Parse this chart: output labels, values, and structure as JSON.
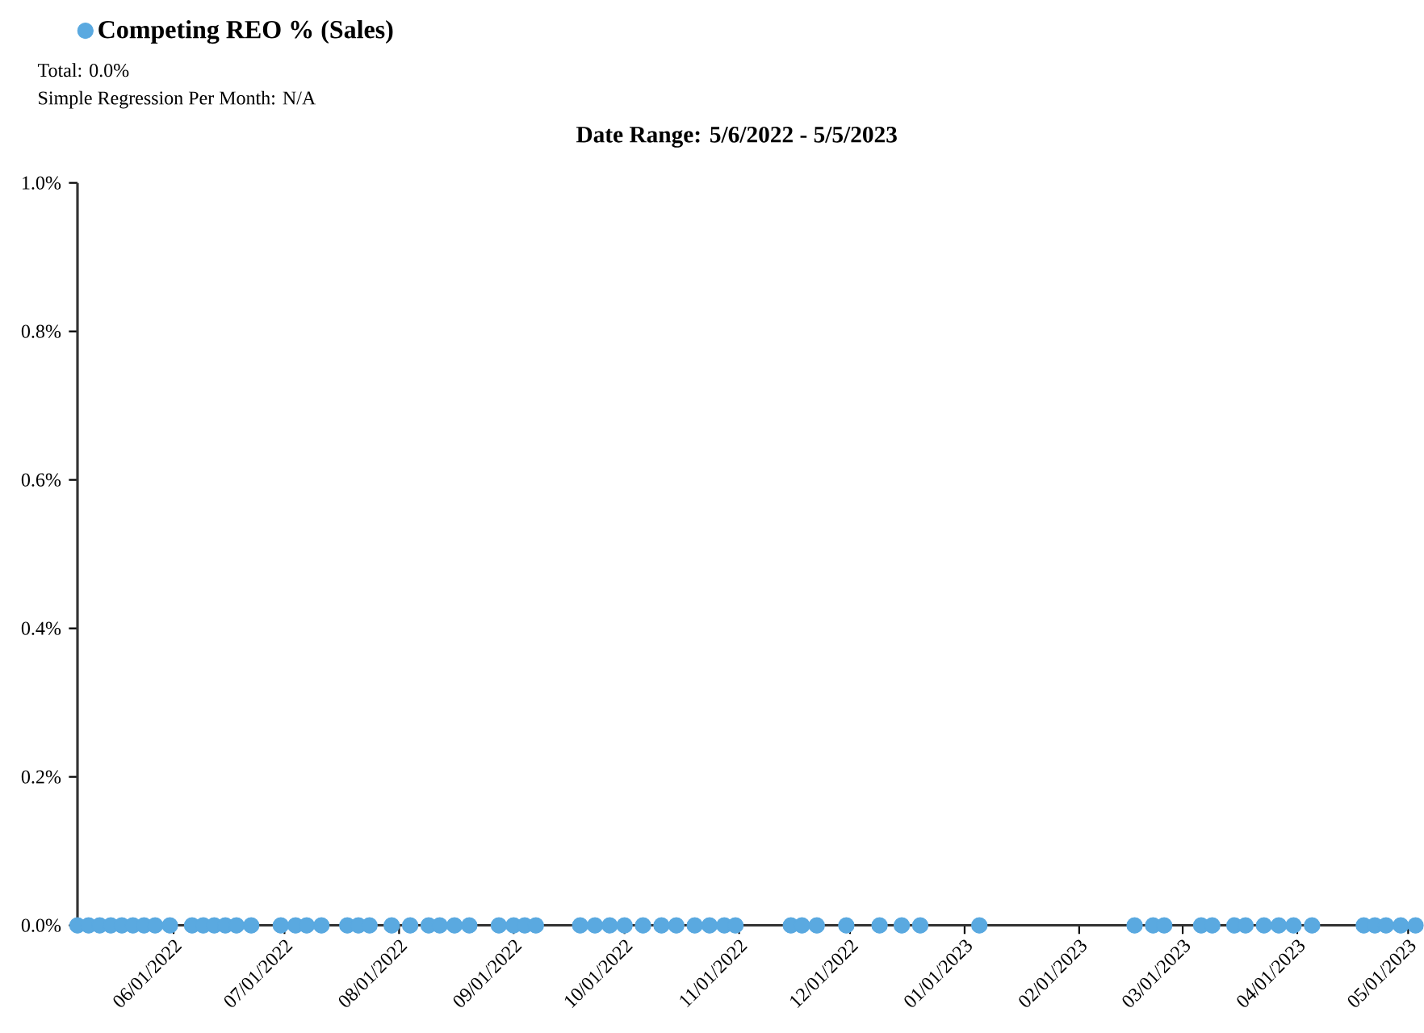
{
  "chart_data": {
    "type": "scatter",
    "title": "Date Range: 5/6/2022 - 5/5/2023",
    "annotations": [
      "Total: 0.0%",
      "Simple Regression Per Month: N/A"
    ],
    "series": [
      {
        "name": "Competing REO % (Sales)",
        "color": "#5aa9e0",
        "x": [
          "2022-05-06",
          "2022-05-09",
          "2022-05-12",
          "2022-05-15",
          "2022-05-18",
          "2022-05-21",
          "2022-05-24",
          "2022-05-27",
          "2022-05-31",
          "2022-06-06",
          "2022-06-09",
          "2022-06-12",
          "2022-06-15",
          "2022-06-18",
          "2022-06-22",
          "2022-06-30",
          "2022-07-04",
          "2022-07-07",
          "2022-07-11",
          "2022-07-18",
          "2022-07-21",
          "2022-07-24",
          "2022-07-30",
          "2022-08-04",
          "2022-08-09",
          "2022-08-12",
          "2022-08-16",
          "2022-08-20",
          "2022-08-28",
          "2022-09-01",
          "2022-09-04",
          "2022-09-07",
          "2022-09-19",
          "2022-09-23",
          "2022-09-27",
          "2022-10-01",
          "2022-10-06",
          "2022-10-11",
          "2022-10-15",
          "2022-10-20",
          "2022-10-24",
          "2022-10-28",
          "2022-10-31",
          "2022-11-15",
          "2022-11-18",
          "2022-11-22",
          "2022-11-30",
          "2022-12-09",
          "2022-12-15",
          "2022-12-20",
          "2023-01-05",
          "2023-02-16",
          "2023-02-21",
          "2023-02-24",
          "2023-03-06",
          "2023-03-09",
          "2023-03-15",
          "2023-03-18",
          "2023-03-23",
          "2023-03-27",
          "2023-03-31",
          "2023-04-05",
          "2023-04-19",
          "2023-04-22",
          "2023-04-25",
          "2023-04-29",
          "2023-05-03"
        ],
        "values": [
          0,
          0,
          0,
          0,
          0,
          0,
          0,
          0,
          0,
          0,
          0,
          0,
          0,
          0,
          0,
          0,
          0,
          0,
          0,
          0,
          0,
          0,
          0,
          0,
          0,
          0,
          0,
          0,
          0,
          0,
          0,
          0,
          0,
          0,
          0,
          0,
          0,
          0,
          0,
          0,
          0,
          0,
          0,
          0,
          0,
          0,
          0,
          0,
          0,
          0,
          0,
          0,
          0,
          0,
          0,
          0,
          0,
          0,
          0,
          0,
          0,
          0,
          0,
          0,
          0,
          0,
          0
        ]
      }
    ],
    "xlim": [
      "2022-05-06",
      "2023-05-05"
    ],
    "xticks": [
      {
        "value": "2022-06-01",
        "label": "06/01/2022"
      },
      {
        "value": "2022-07-01",
        "label": "07/01/2022"
      },
      {
        "value": "2022-08-01",
        "label": "08/01/2022"
      },
      {
        "value": "2022-09-01",
        "label": "09/01/2022"
      },
      {
        "value": "2022-10-01",
        "label": "10/01/2022"
      },
      {
        "value": "2022-11-01",
        "label": "11/01/2022"
      },
      {
        "value": "2022-12-01",
        "label": "12/01/2022"
      },
      {
        "value": "2023-01-01",
        "label": "01/01/2023"
      },
      {
        "value": "2023-02-01",
        "label": "02/01/2023"
      },
      {
        "value": "2023-03-01",
        "label": "03/01/2023"
      },
      {
        "value": "2023-04-01",
        "label": "04/01/2023"
      },
      {
        "value": "2023-05-01",
        "label": "05/01/2023"
      }
    ],
    "ylim": [
      0,
      1
    ],
    "yticks": [
      {
        "value": 0,
        "label": "0.0%"
      },
      {
        "value": 0.2,
        "label": "0.2%"
      },
      {
        "value": 0.4,
        "label": "0.4%"
      },
      {
        "value": 0.6,
        "label": "0.6%"
      },
      {
        "value": 0.8,
        "label": "0.8%"
      },
      {
        "value": 1,
        "label": "1.0%"
      }
    ],
    "legend": "top left",
    "marker": "circle",
    "grid": false
  }
}
